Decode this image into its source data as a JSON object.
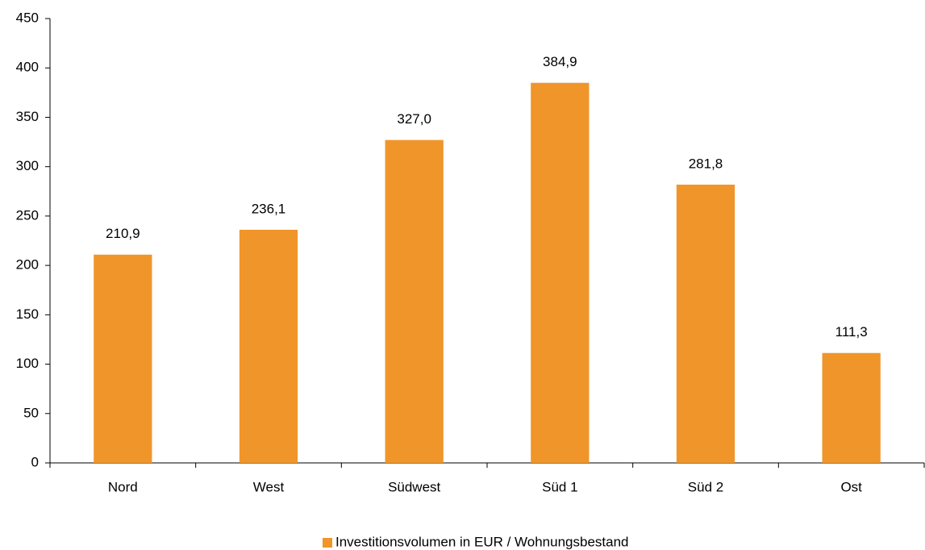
{
  "chart_data": {
    "type": "bar",
    "categories": [
      "Nord",
      "West",
      "Südwest",
      "Süd 1",
      "Süd 2",
      "Ost"
    ],
    "series": [
      {
        "name": "Investitionsvolumen in EUR / Wohnungsbestand",
        "color": "#f0952a",
        "values": [
          210.9,
          236.1,
          327.0,
          384.9,
          281.8,
          111.3
        ],
        "value_labels": [
          "210,9",
          "236,1",
          "327,0",
          "384,9",
          "281,8",
          "111,3"
        ]
      }
    ],
    "ylim": [
      0,
      450
    ],
    "yticks": [
      0,
      50,
      100,
      150,
      200,
      250,
      300,
      350,
      400,
      450
    ],
    "grid": false,
    "legend": "bottom"
  }
}
